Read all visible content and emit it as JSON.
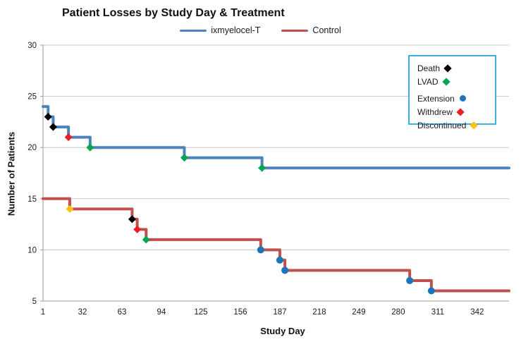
{
  "header": {
    "title": "Patient Losses by Study Day & Treatment"
  },
  "axes": {
    "x_label": "Study Day",
    "y_label": "Number of Patients"
  },
  "series_legend": [
    {
      "label": "ixmyelocel-T",
      "color": "#4F81BD"
    },
    {
      "label": "Control",
      "color": "#C0504D"
    }
  ],
  "marker_legend": {
    "border_color": "#3FB0E5",
    "items": [
      {
        "label": "Death",
        "shape": "diamond",
        "color": "#000000",
        "group": 1
      },
      {
        "label": "LVAD",
        "shape": "diamond",
        "color": "#00A651",
        "group": 1
      },
      {
        "label": "Extension",
        "shape": "circle",
        "color": "#1B75BC",
        "group": 2
      },
      {
        "label": "Withdrew",
        "shape": "diamond",
        "color": "#ED1C24",
        "group": 2
      },
      {
        "label": "Discontinued",
        "shape": "diamond",
        "color": "#FFC20E",
        "group": 2
      }
    ]
  },
  "chart_data": {
    "type": "line",
    "subtype": "step",
    "title": "Patient Losses by Study Day & Treatment",
    "xlabel": "Study Day",
    "ylabel": "Number of Patients",
    "xlim": [
      1,
      367
    ],
    "ylim": [
      5,
      30
    ],
    "xticks": [
      1,
      32,
      63,
      94,
      125,
      156,
      187,
      218,
      249,
      280,
      311,
      342
    ],
    "yticks": [
      5,
      10,
      15,
      20,
      25,
      30
    ],
    "grid": "horizontal",
    "legend_position": "top-right",
    "series": [
      {
        "name": "ixmyelocel-T",
        "color": "#4F81BD",
        "start_patients": 24,
        "end_day": 367,
        "end_patients": 18,
        "events": [
          {
            "day": 5,
            "patients": 23,
            "reason": "Death"
          },
          {
            "day": 9,
            "patients": 22,
            "reason": "Death"
          },
          {
            "day": 21,
            "patients": 21,
            "reason": "Withdrew"
          },
          {
            "day": 38,
            "patients": 20,
            "reason": "LVAD"
          },
          {
            "day": 112,
            "patients": 19,
            "reason": "LVAD"
          },
          {
            "day": 173,
            "patients": 18,
            "reason": "LVAD"
          }
        ]
      },
      {
        "name": "Control",
        "color": "#C0504D",
        "start_patients": 15,
        "end_day": 367,
        "end_patients": 6,
        "events": [
          {
            "day": 22,
            "patients": 14,
            "reason": "Discontinued"
          },
          {
            "day": 71,
            "patients": 13,
            "reason": "Death"
          },
          {
            "day": 75,
            "patients": 12,
            "reason": "Withdrew"
          },
          {
            "day": 82,
            "patients": 11,
            "reason": "LVAD"
          },
          {
            "day": 172,
            "patients": 10,
            "reason": "Extension"
          },
          {
            "day": 187,
            "patients": 9,
            "reason": "Extension"
          },
          {
            "day": 191,
            "patients": 8,
            "reason": "Extension"
          },
          {
            "day": 289,
            "patients": 7,
            "reason": "Extension"
          },
          {
            "day": 306,
            "patients": 6,
            "reason": "Extension"
          }
        ]
      }
    ],
    "style": {
      "gridline_color": "#C9C9C9",
      "axis_color": "#9A9A9A",
      "tick_label_color": "#1a1a1a"
    }
  }
}
